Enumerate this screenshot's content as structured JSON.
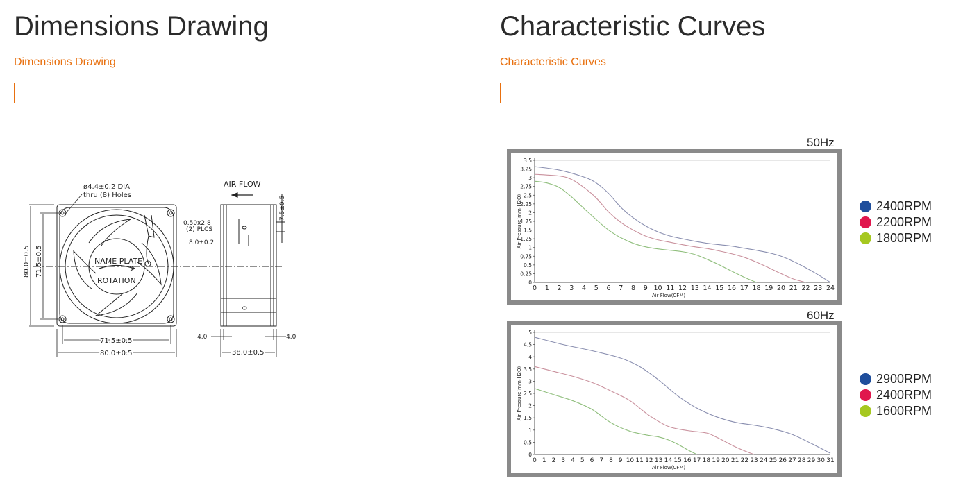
{
  "left_section": {
    "title": "Dimensions Drawing",
    "subtitle": "Dimensions Drawing"
  },
  "right_section": {
    "title": "Characteristic Curves",
    "subtitle": "Characteristic Curves"
  },
  "drawing": {
    "hole_note_line1": "ø4.4±0.2 DIA",
    "hole_note_line2": "thru (8) Holes",
    "air_flow": "AIR FLOW",
    "name_plate": "NAME PLATE",
    "rotation": "ROTATION",
    "dim_height_outer": "80.0±0.5",
    "dim_height_inner": "71.5±0.5",
    "dim_width_inner": "71.5±0.5",
    "dim_width_outer": "80.0±0.5",
    "dim_slot_line1": "0.50x2.8",
    "dim_slot_line2": "(2) PLCS",
    "dim_slot_offset": "8.0±0.2",
    "dim_top": "7.5±0.5",
    "dim_flange_left": "4.0",
    "dim_flange_right": "4.0",
    "dim_depth": "38.0±0.5"
  },
  "legend_colors": {
    "a": "#1f4e9c",
    "b": "#e0174d",
    "c": "#a6c820"
  },
  "chart_data": [
    {
      "type": "line",
      "title": "50Hz",
      "xlabel": "Air Flow(CFM)",
      "ylabel": "Air Pressure(mm-H2O)",
      "xlim": [
        0,
        24
      ],
      "ylim": [
        0,
        3.5
      ],
      "x_ticks": [
        "0",
        "1",
        "2",
        "3",
        "4",
        "5",
        "6",
        "7",
        "8",
        "9",
        "10",
        "11",
        "12",
        "13",
        "14",
        "15",
        "16",
        "17",
        "18",
        "19",
        "20",
        "21",
        "22",
        "23",
        "24"
      ],
      "y_ticks": [
        "0",
        "0.25",
        "0.5",
        "0.75",
        "1",
        "1.25",
        "1.5",
        "1.75",
        "2",
        "2.25",
        "2.5",
        "2.75",
        "3",
        "3.25",
        "3.5"
      ],
      "series": [
        {
          "name": "2400RPM",
          "color": "#8a8fb0",
          "points": [
            [
              0,
              3.32
            ],
            [
              2,
              3.22
            ],
            [
              4,
              3.02
            ],
            [
              5,
              2.85
            ],
            [
              6,
              2.55
            ],
            [
              7,
              2.15
            ],
            [
              8,
              1.85
            ],
            [
              9,
              1.62
            ],
            [
              10,
              1.45
            ],
            [
              11,
              1.33
            ],
            [
              12,
              1.25
            ],
            [
              13,
              1.18
            ],
            [
              14,
              1.12
            ],
            [
              15,
              1.08
            ],
            [
              16,
              1.04
            ],
            [
              17,
              0.98
            ],
            [
              18,
              0.92
            ],
            [
              19,
              0.85
            ],
            [
              20,
              0.75
            ],
            [
              21,
              0.6
            ],
            [
              22,
              0.42
            ],
            [
              23,
              0.22
            ],
            [
              24,
              0
            ]
          ]
        },
        {
          "name": "2200RPM",
          "color": "#c9909c",
          "points": [
            [
              0,
              3.1
            ],
            [
              2,
              3.05
            ],
            [
              3,
              2.95
            ],
            [
              4,
              2.72
            ],
            [
              5,
              2.42
            ],
            [
              6,
              2.02
            ],
            [
              7,
              1.72
            ],
            [
              8,
              1.5
            ],
            [
              9,
              1.33
            ],
            [
              10,
              1.22
            ],
            [
              11,
              1.15
            ],
            [
              12,
              1.08
            ],
            [
              13,
              1.02
            ],
            [
              14,
              0.97
            ],
            [
              15,
              0.9
            ],
            [
              16,
              0.82
            ],
            [
              17,
              0.72
            ],
            [
              18,
              0.58
            ],
            [
              19,
              0.42
            ],
            [
              20,
              0.25
            ],
            [
              21,
              0.1
            ],
            [
              22,
              0
            ]
          ]
        },
        {
          "name": "1800RPM",
          "color": "#8fbe7c",
          "points": [
            [
              0,
              2.9
            ],
            [
              1,
              2.85
            ],
            [
              2,
              2.72
            ],
            [
              3,
              2.45
            ],
            [
              4,
              2.12
            ],
            [
              5,
              1.8
            ],
            [
              6,
              1.5
            ],
            [
              7,
              1.28
            ],
            [
              8,
              1.12
            ],
            [
              9,
              1.02
            ],
            [
              10,
              0.96
            ],
            [
              11,
              0.92
            ],
            [
              12,
              0.88
            ],
            [
              13,
              0.8
            ],
            [
              14,
              0.66
            ],
            [
              15,
              0.5
            ],
            [
              16,
              0.32
            ],
            [
              17,
              0.15
            ],
            [
              18,
              0
            ]
          ]
        }
      ],
      "legend": [
        "2400RPM",
        "2200RPM",
        "1800RPM"
      ],
      "legend_position": "right"
    },
    {
      "type": "line",
      "title": "60Hz",
      "xlabel": "Air Flow(CFM)",
      "ylabel": "Air Pressure(mm-H2O)",
      "xlim": [
        0,
        31
      ],
      "ylim": [
        0,
        5
      ],
      "x_ticks": [
        "0",
        "1",
        "2",
        "3",
        "4",
        "5",
        "6",
        "7",
        "8",
        "9",
        "10",
        "11",
        "12",
        "13",
        "14",
        "15",
        "16",
        "17",
        "18",
        "19",
        "20",
        "21",
        "22",
        "23",
        "24",
        "25",
        "26",
        "27",
        "28",
        "29",
        "30",
        "31"
      ],
      "y_ticks": [
        "0",
        "0.5",
        "1",
        "1.5",
        "2",
        "2.5",
        "3",
        "3.5",
        "4",
        "4.5",
        "5"
      ],
      "series": [
        {
          "name": "2900RPM",
          "color": "#8a8fb0",
          "points": [
            [
              0,
              4.8
            ],
            [
              3,
              4.5
            ],
            [
              6,
              4.25
            ],
            [
              9,
              3.95
            ],
            [
              11,
              3.6
            ],
            [
              13,
              3.05
            ],
            [
              15,
              2.4
            ],
            [
              17,
              1.9
            ],
            [
              19,
              1.55
            ],
            [
              21,
              1.32
            ],
            [
              23,
              1.2
            ],
            [
              25,
              1.05
            ],
            [
              27,
              0.82
            ],
            [
              29,
              0.45
            ],
            [
              31,
              0.05
            ]
          ]
        },
        {
          "name": "2400RPM",
          "color": "#c9909c",
          "points": [
            [
              0,
              3.6
            ],
            [
              2,
              3.4
            ],
            [
              4,
              3.2
            ],
            [
              6,
              2.95
            ],
            [
              8,
              2.6
            ],
            [
              10,
              2.2
            ],
            [
              12,
              1.6
            ],
            [
              14,
              1.15
            ],
            [
              16,
              0.98
            ],
            [
              18,
              0.88
            ],
            [
              19,
              0.72
            ],
            [
              20,
              0.52
            ],
            [
              21,
              0.32
            ],
            [
              22,
              0.15
            ],
            [
              23,
              0
            ]
          ]
        },
        {
          "name": "1600RPM",
          "color": "#8fbe7c",
          "points": [
            [
              0,
              2.7
            ],
            [
              2,
              2.45
            ],
            [
              4,
              2.2
            ],
            [
              6,
              1.85
            ],
            [
              8,
              1.3
            ],
            [
              10,
              0.95
            ],
            [
              12,
              0.78
            ],
            [
              13,
              0.72
            ],
            [
              14,
              0.6
            ],
            [
              15,
              0.42
            ],
            [
              16,
              0.2
            ],
            [
              17,
              0
            ]
          ]
        }
      ],
      "legend": [
        "2900RPM",
        "2400RPM",
        "1600RPM"
      ],
      "legend_position": "right"
    }
  ]
}
